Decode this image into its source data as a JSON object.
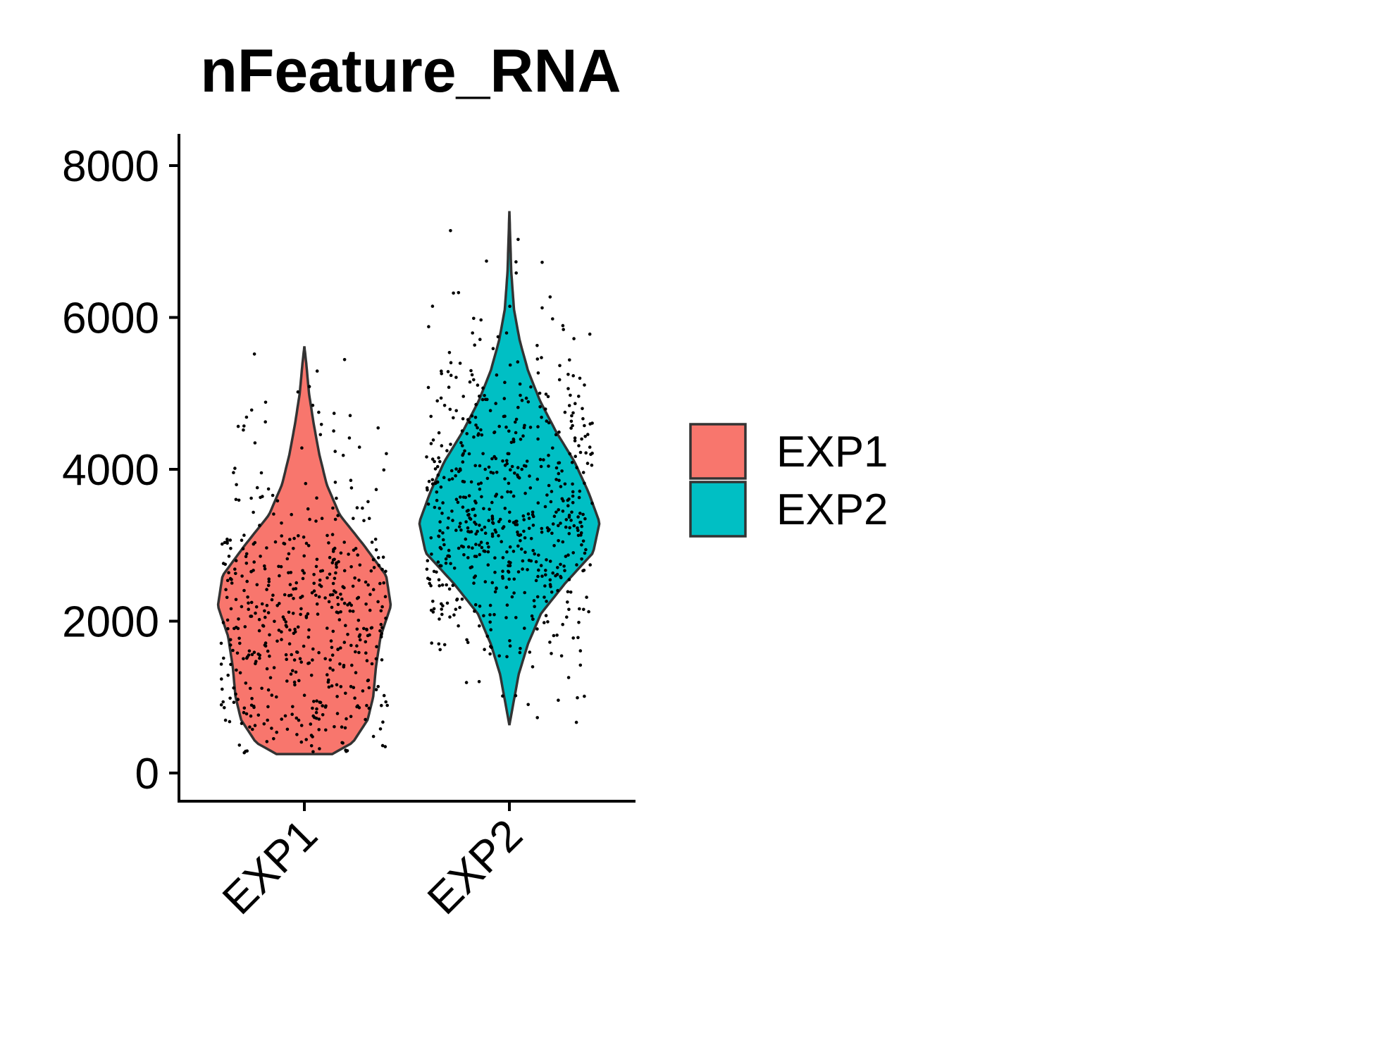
{
  "chart_data": {
    "type": "violin",
    "title": "nFeature_RNA",
    "xlabel": "",
    "ylabel": "",
    "categories": [
      "EXP1",
      "EXP2"
    ],
    "colors": [
      "#F8766D",
      "#00BFC4"
    ],
    "ylim": [
      -400,
      8400
    ],
    "yticks": [
      0,
      2000,
      4000,
      6000,
      8000
    ],
    "grid": false,
    "legend": {
      "position": "right",
      "entries": [
        {
          "label": "EXP1",
          "color": "#F8766D"
        },
        {
          "label": "EXP2",
          "color": "#00BFC4"
        }
      ]
    },
    "series": [
      {
        "category": "EXP1",
        "min": 250,
        "max": 5620,
        "density_profile": [
          [
            250,
            0.3
          ],
          [
            400,
            0.52
          ],
          [
            700,
            0.68
          ],
          [
            1000,
            0.74
          ],
          [
            1400,
            0.77
          ],
          [
            1800,
            0.82
          ],
          [
            2200,
            0.93
          ],
          [
            2600,
            0.88
          ],
          [
            3000,
            0.64
          ],
          [
            3400,
            0.38
          ],
          [
            3800,
            0.24
          ],
          [
            4200,
            0.16
          ],
          [
            4600,
            0.1
          ],
          [
            5000,
            0.05
          ],
          [
            5400,
            0.02
          ],
          [
            5620,
            0.0
          ]
        ],
        "n_points": 520
      },
      {
        "category": "EXP2",
        "min": 630,
        "max": 7400,
        "density_profile": [
          [
            630,
            0.0
          ],
          [
            900,
            0.04
          ],
          [
            1300,
            0.1
          ],
          [
            1700,
            0.2
          ],
          [
            2100,
            0.34
          ],
          [
            2500,
            0.6
          ],
          [
            2900,
            0.9
          ],
          [
            3300,
            0.97
          ],
          [
            3700,
            0.85
          ],
          [
            4100,
            0.7
          ],
          [
            4500,
            0.5
          ],
          [
            4900,
            0.33
          ],
          [
            5300,
            0.2
          ],
          [
            5700,
            0.11
          ],
          [
            6100,
            0.05
          ],
          [
            6600,
            0.02
          ],
          [
            7000,
            0.01
          ],
          [
            7400,
            0.0
          ]
        ],
        "n_points": 640
      }
    ]
  }
}
